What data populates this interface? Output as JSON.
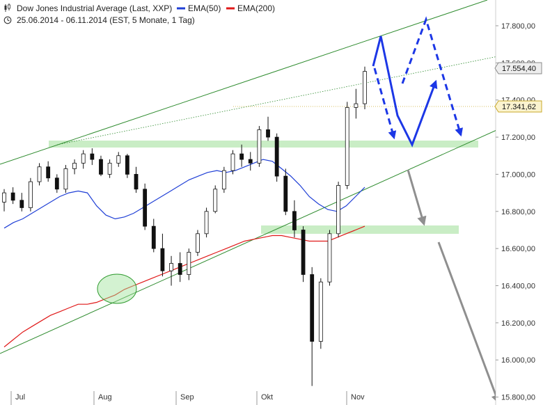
{
  "header": {
    "instrument": "Dow Jones Industrial Average (Last, XXP)",
    "ema50_label": "EMA(50)",
    "ema200_label": "EMA(200)",
    "period": "25.06.2014 - 06.11.2014 (EST, 5 Monate, 1 Tag)"
  },
  "chart_data": {
    "type": "candlestick",
    "title": "Dow Jones Industrial Average (Last, XXP)",
    "subtitle": "25.06.2014 - 06.11.2014 (EST, 5 Monate, 1 Tag)",
    "y_axis": {
      "position": "right",
      "ylim": [
        15800,
        17900
      ],
      "ticks": [
        "15.800,00",
        "16.000,00",
        "16.200,00",
        "16.400,00",
        "16.600,00",
        "16.800,00",
        "17.000,00",
        "17.200,00",
        "17.400,00",
        "17.600,00",
        "17.800,00"
      ],
      "tick_values": [
        15800,
        16000,
        16200,
        16400,
        16600,
        16800,
        17000,
        17200,
        17400,
        17600,
        17800
      ]
    },
    "x_axis": {
      "ticks": [
        "Jul",
        "Aug",
        "Sep",
        "Okt",
        "Nov"
      ]
    },
    "price_badges": [
      {
        "label": "17.554,40",
        "value": 17554.4,
        "style": "gray"
      },
      {
        "label": "17.341,62",
        "value": 17341.62,
        "style": "yellow"
      }
    ],
    "series": [
      {
        "name": "EMA(50)",
        "color": "#1f3fd6",
        "values": [
          16710,
          16740,
          16760,
          16790,
          16820,
          16850,
          16880,
          16900,
          16910,
          16900,
          16830,
          16780,
          16760,
          16770,
          16790,
          16820,
          16850,
          16880,
          16910,
          16940,
          16970,
          16990,
          17010,
          17020,
          17010,
          17020,
          17040,
          17060,
          17080,
          17070,
          17030,
          16990,
          16940,
          16880,
          16840,
          16810,
          16800,
          16830,
          16880,
          16930
        ]
      },
      {
        "name": "EMA(200)",
        "color": "#e01818",
        "values": [
          16070,
          16110,
          16150,
          16180,
          16210,
          16240,
          16260,
          16280,
          16300,
          16300,
          16310,
          16330,
          16350,
          16380,
          16400,
          16420,
          16440,
          16460,
          16480,
          16500,
          16520,
          16540,
          16560,
          16580,
          16600,
          16620,
          16640,
          16650,
          16660,
          16670,
          16670,
          16660,
          16650,
          16640,
          16640,
          16640,
          16660,
          16680,
          16700,
          16720
        ]
      }
    ],
    "candles": [
      [
        16850,
        16920,
        16800,
        16900
      ],
      [
        16900,
        16930,
        16840,
        16860
      ],
      [
        16860,
        16900,
        16800,
        16820
      ],
      [
        16820,
        16980,
        16800,
        16960
      ],
      [
        16960,
        17060,
        16940,
        17040
      ],
      [
        17040,
        17070,
        16960,
        16980
      ],
      [
        16980,
        17000,
        16900,
        16920
      ],
      [
        16920,
        17050,
        16900,
        17030
      ],
      [
        17030,
        17080,
        17000,
        17060
      ],
      [
        17060,
        17130,
        17030,
        17110
      ],
      [
        17110,
        17140,
        17050,
        17080
      ],
      [
        17080,
        17100,
        16990,
        17000
      ],
      [
        17000,
        17080,
        16980,
        17060
      ],
      [
        17060,
        17120,
        17040,
        17100
      ],
      [
        17100,
        17110,
        16980,
        17000
      ],
      [
        17000,
        17040,
        16900,
        16920
      ],
      [
        16920,
        16950,
        16700,
        16720
      ],
      [
        16720,
        16760,
        16580,
        16600
      ],
      [
        16600,
        16680,
        16450,
        16480
      ],
      [
        16480,
        16560,
        16400,
        16520
      ],
      [
        16520,
        16580,
        16420,
        16460
      ],
      [
        16460,
        16600,
        16430,
        16580
      ],
      [
        16580,
        16700,
        16560,
        16680
      ],
      [
        16680,
        16820,
        16660,
        16800
      ],
      [
        16800,
        16940,
        16790,
        16920
      ],
      [
        16920,
        17040,
        16900,
        17020
      ],
      [
        17020,
        17130,
        17000,
        17110
      ],
      [
        17110,
        17160,
        17040,
        17080
      ],
      [
        17080,
        17120,
        17020,
        17060
      ],
      [
        17060,
        17260,
        17040,
        17240
      ],
      [
        17240,
        17310,
        17180,
        17200
      ],
      [
        17200,
        17220,
        16960,
        16990
      ],
      [
        16990,
        17030,
        16780,
        16800
      ],
      [
        16800,
        16860,
        16660,
        16700
      ],
      [
        16700,
        16720,
        16420,
        16460
      ],
      [
        16460,
        16500,
        15860,
        16100
      ],
      [
        16100,
        16440,
        16060,
        16420
      ],
      [
        16420,
        16700,
        16400,
        16680
      ],
      [
        16680,
        16960,
        16660,
        16940
      ],
      [
        16940,
        17390,
        16920,
        17360
      ],
      [
        17360,
        17460,
        17300,
        17380
      ],
      [
        17380,
        17580,
        17350,
        17554
      ]
    ],
    "annotations": [
      "upper channel line",
      "lower channel line",
      "dotted trend line",
      "resistance zone ~17.150",
      "support zone ~16.650",
      "circle at EMA(200) touch (Aug)",
      "blue solid zigzag projection",
      "blue dashed zigzag projection",
      "gray downside projection arrows"
    ]
  }
}
